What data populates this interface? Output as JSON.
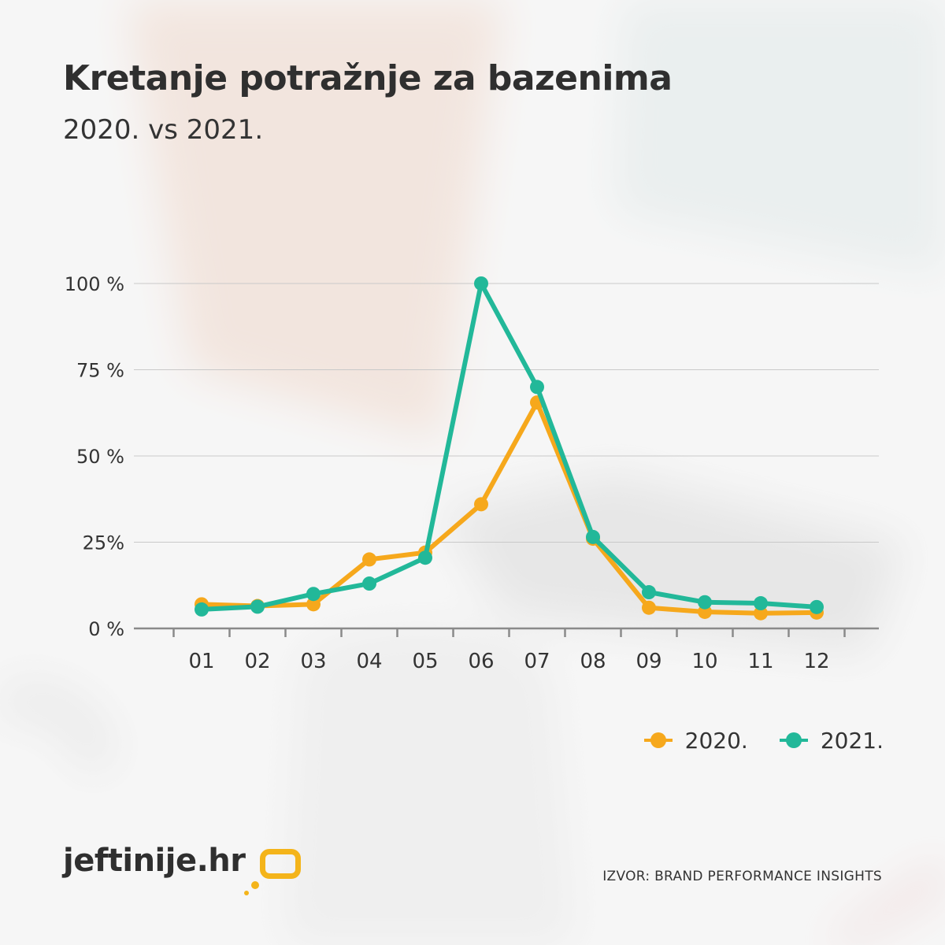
{
  "header": {
    "title": "Kretanje potražnje za bazenima",
    "subtitle": "2020. vs 2021."
  },
  "chart_data": {
    "type": "line",
    "title": "Kretanje potražnje za bazenima",
    "subtitle": "2020. vs 2021.",
    "xlabel": "",
    "ylabel": "",
    "categories": [
      "01",
      "02",
      "03",
      "04",
      "05",
      "06",
      "07",
      "08",
      "09",
      "10",
      "11",
      "12"
    ],
    "y_ticks": [
      {
        "value": 0,
        "label": "0 %"
      },
      {
        "value": 25,
        "label": "25%"
      },
      {
        "value": 50,
        "label": "50 %"
      },
      {
        "value": 75,
        "label": "75 %"
      },
      {
        "value": 100,
        "label": "100 %"
      }
    ],
    "ylim": [
      0,
      100
    ],
    "grid": true,
    "legend_position": "bottom-right",
    "series": [
      {
        "name": "2020.",
        "color": "#f6a81c",
        "values": [
          7,
          6.5,
          7,
          20,
          22,
          36,
          65.5,
          26,
          6,
          4.8,
          4.4,
          4.6
        ]
      },
      {
        "name": "2021.",
        "color": "#22b899",
        "values": [
          5.5,
          6.3,
          10,
          13,
          20.5,
          100,
          70,
          26.5,
          10.5,
          7.6,
          7.3,
          6.2
        ]
      }
    ]
  },
  "footer": {
    "logo_text": "jeftinije.hr",
    "source": "IZVOR: BRAND PERFORMANCE INSIGHTS"
  },
  "colors": {
    "accent_orange": "#f6a81c",
    "accent_teal": "#22b899",
    "text": "#2f2f2f"
  }
}
